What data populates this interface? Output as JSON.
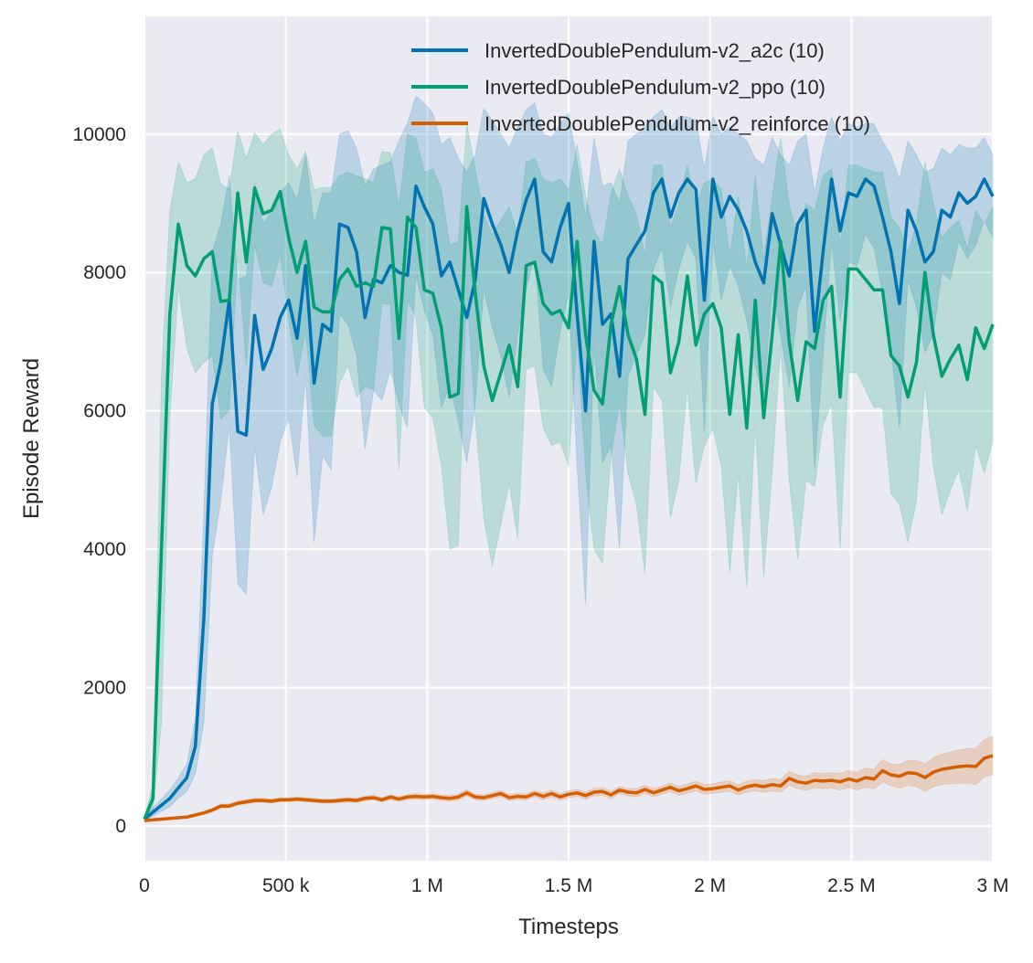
{
  "chart_data": {
    "type": "line",
    "title": "",
    "xlabel": "Timesteps",
    "ylabel": "Episode Reward",
    "xlim": [
      0,
      3000000
    ],
    "ylim": [
      -500,
      11700
    ],
    "grid": true,
    "legend_placement": "top-right",
    "background_color": "#eaeaf2",
    "x_ticks": [
      0,
      500000,
      1000000,
      1500000,
      2000000,
      2500000,
      3000000
    ],
    "x_tick_labels": [
      "0",
      "500 k",
      "1 M",
      "1.5 M",
      "2 M",
      "2.5 M",
      "3 M"
    ],
    "y_ticks": [
      0,
      2000,
      4000,
      6000,
      8000,
      10000
    ],
    "y_tick_labels": [
      "0",
      "2000",
      "4000",
      "6000",
      "8000",
      "10000"
    ],
    "x": [
      0,
      30000,
      60000,
      90000,
      120000,
      150000,
      180000,
      210000,
      240000,
      270000,
      300000,
      330000,
      360000,
      390000,
      420000,
      450000,
      480000,
      510000,
      540000,
      570000,
      600000,
      630000,
      660000,
      690000,
      720000,
      750000,
      780000,
      810000,
      840000,
      870000,
      900000,
      930000,
      960000,
      990000,
      1020000,
      1050000,
      1080000,
      1110000,
      1140000,
      1170000,
      1200000,
      1230000,
      1260000,
      1290000,
      1320000,
      1350000,
      1380000,
      1410000,
      1440000,
      1470000,
      1500000,
      1530000,
      1560000,
      1590000,
      1620000,
      1650000,
      1680000,
      1710000,
      1740000,
      1770000,
      1800000,
      1830000,
      1860000,
      1890000,
      1920000,
      1950000,
      1980000,
      2010000,
      2040000,
      2070000,
      2100000,
      2130000,
      2160000,
      2190000,
      2220000,
      2250000,
      2280000,
      2310000,
      2340000,
      2370000,
      2400000,
      2430000,
      2460000,
      2490000,
      2520000,
      2550000,
      2580000,
      2610000,
      2640000,
      2670000,
      2700000,
      2730000,
      2760000,
      2790000,
      2820000,
      2850000,
      2880000,
      2910000,
      2940000,
      2970000,
      3000000
    ],
    "series": [
      {
        "name": "InvertedDoublePendulum-v2_a2c (10)",
        "color": "#0173b2",
        "values": [
          100,
          200,
          300,
          400,
          550,
          700,
          1150,
          3000,
          6100,
          6700,
          7600,
          5700,
          5650,
          7380,
          6600,
          6900,
          7350,
          7600,
          7050,
          8100,
          6400,
          7250,
          7150,
          8700,
          8650,
          8300,
          7350,
          7900,
          7850,
          8100,
          8000,
          7960,
          9250,
          8950,
          8700,
          7950,
          8150,
          7750,
          7350,
          7900,
          9070,
          8700,
          8400,
          8000,
          8600,
          9050,
          9350,
          8300,
          8150,
          8650,
          9000,
          7400,
          6000,
          8450,
          7250,
          7400,
          6500,
          8200,
          8400,
          8600,
          9150,
          9350,
          8800,
          9150,
          9350,
          9200,
          7600,
          9350,
          8800,
          9100,
          8900,
          8600,
          8150,
          7850,
          8850,
          8400,
          7950,
          8700,
          8900,
          7150,
          8300,
          9350,
          8600,
          9150,
          9100,
          9350,
          9250,
          8800,
          8300,
          7550,
          8900,
          8600,
          8150,
          8300,
          8900,
          8800,
          9150,
          9000,
          9100,
          9350,
          9100
        ],
        "std": [
          30,
          60,
          90,
          120,
          150,
          200,
          400,
          1500,
          2200,
          2000,
          1800,
          2200,
          2300,
          1900,
          2100,
          2000,
          1800,
          1700,
          2000,
          1600,
          2300,
          1900,
          2000,
          1300,
          1400,
          1500,
          1900,
          1600,
          1700,
          1500,
          1900,
          2200,
          1300,
          1500,
          1600,
          1900,
          1800,
          1900,
          2100,
          1800,
          1300,
          1500,
          1600,
          1800,
          1500,
          1300,
          1100,
          1700,
          1800,
          1500,
          1300,
          2200,
          2800,
          1500,
          2000,
          1900,
          2500,
          1700,
          1600,
          1500,
          1100,
          1000,
          1300,
          1100,
          900,
          1000,
          1900,
          900,
          1200,
          1000,
          1100,
          1300,
          1500,
          1700,
          1100,
          1300,
          1600,
          1200,
          1100,
          2000,
          1500,
          900,
          1300,
          1000,
          1000,
          800,
          900,
          1100,
          1400,
          1800,
          1000,
          1100,
          1300,
          1200,
          900,
          900,
          700,
          800,
          700,
          600,
          600
        ]
      },
      {
        "name": "InvertedDoublePendulum-v2_ppo (10)",
        "color": "#029e73",
        "values": [
          100,
          400,
          4000,
          7400,
          8700,
          8100,
          7950,
          8200,
          8300,
          7580,
          7600,
          9150,
          8150,
          9220,
          8850,
          8900,
          9170,
          8500,
          8000,
          8450,
          7500,
          7430,
          7430,
          7900,
          8050,
          7800,
          7850,
          7800,
          8650,
          8630,
          7050,
          8800,
          8650,
          7750,
          7700,
          7200,
          6200,
          6250,
          8950,
          7700,
          6650,
          6150,
          6550,
          6950,
          6350,
          8100,
          8150,
          7550,
          7400,
          7450,
          7200,
          8450,
          7100,
          6300,
          6100,
          7250,
          7800,
          7100,
          6750,
          5950,
          7950,
          7850,
          6550,
          7000,
          7950,
          6950,
          7400,
          7550,
          7200,
          5950,
          7100,
          5750,
          7600,
          5900,
          7100,
          8450,
          7000,
          6150,
          7000,
          6900,
          7600,
          7800,
          6200,
          8050,
          8050,
          7900,
          7750,
          7750,
          6800,
          6650,
          6200,
          6700,
          8000,
          7100,
          6500,
          6750,
          6950,
          6450,
          7200,
          6900,
          7250
        ],
        "std": [
          30,
          200,
          2500,
          1500,
          900,
          1200,
          1400,
          1500,
          1500,
          1700,
          1600,
          900,
          1500,
          800,
          1000,
          1100,
          900,
          1200,
          1500,
          1300,
          1700,
          1800,
          1800,
          1500,
          1400,
          1600,
          1500,
          1500,
          1100,
          1100,
          1900,
          1200,
          1300,
          1700,
          1800,
          2000,
          2200,
          2200,
          1200,
          1800,
          2200,
          2400,
          2200,
          2000,
          2200,
          1500,
          1500,
          1800,
          1900,
          1900,
          2000,
          1400,
          2000,
          2300,
          2300,
          1900,
          1700,
          2000,
          2100,
          2300,
          1600,
          1700,
          2100,
          2000,
          1600,
          2000,
          1900,
          1800,
          2000,
          2300,
          2000,
          2300,
          1800,
          2300,
          2000,
          1500,
          2000,
          2300,
          2000,
          2000,
          1800,
          1700,
          2200,
          1500,
          1500,
          1600,
          1700,
          1700,
          2000,
          2000,
          2100,
          2000,
          1600,
          1900,
          2000,
          1900,
          1800,
          1900,
          1700,
          1800,
          1700
        ]
      },
      {
        "name": "InvertedDoublePendulum-v2_reinforce (10)",
        "color": "#d55e00",
        "values": [
          80,
          90,
          100,
          110,
          120,
          130,
          160,
          190,
          230,
          290,
          290,
          330,
          350,
          370,
          370,
          360,
          380,
          380,
          390,
          380,
          370,
          360,
          360,
          370,
          380,
          370,
          400,
          410,
          380,
          420,
          390,
          420,
          430,
          420,
          430,
          410,
          400,
          420,
          480,
          420,
          410,
          440,
          470,
          410,
          430,
          420,
          470,
          430,
          470,
          420,
          460,
          480,
          440,
          490,
          500,
          450,
          520,
          490,
          480,
          530,
          480,
          520,
          560,
          510,
          540,
          580,
          530,
          540,
          560,
          580,
          520,
          570,
          590,
          570,
          600,
          580,
          690,
          640,
          620,
          660,
          650,
          660,
          640,
          680,
          650,
          700,
          680,
          800,
          740,
          720,
          770,
          760,
          700,
          780,
          820,
          840,
          860,
          870,
          860,
          980,
          1020
        ],
        "std": [
          15,
          15,
          15,
          15,
          15,
          20,
          20,
          20,
          25,
          30,
          30,
          30,
          30,
          30,
          30,
          30,
          30,
          30,
          30,
          30,
          30,
          30,
          30,
          35,
          35,
          35,
          35,
          35,
          35,
          35,
          35,
          35,
          40,
          40,
          40,
          40,
          40,
          40,
          45,
          40,
          40,
          45,
          45,
          45,
          45,
          45,
          45,
          50,
          50,
          50,
          50,
          50,
          50,
          55,
          55,
          55,
          55,
          55,
          60,
          60,
          60,
          60,
          65,
          65,
          65,
          70,
          70,
          70,
          75,
          75,
          75,
          80,
          80,
          85,
          90,
          90,
          100,
          100,
          100,
          110,
          110,
          110,
          120,
          120,
          130,
          140,
          140,
          160,
          160,
          170,
          180,
          190,
          200,
          210,
          220,
          230,
          240,
          250,
          260,
          270,
          280
        ]
      }
    ]
  }
}
